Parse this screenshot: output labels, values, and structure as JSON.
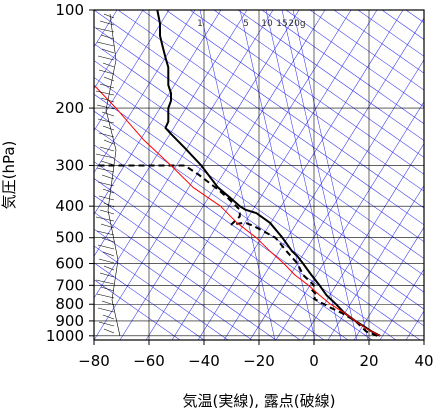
{
  "chart_data": {
    "type": "line",
    "xlabel": "気温(実線), 露点(破線)",
    "ylabel": "気圧(hPa)",
    "xlim": [
      -80,
      40
    ],
    "ylim": [
      1030,
      100
    ],
    "y_scale": "log",
    "x_ticks": [
      -80,
      -60,
      -40,
      -20,
      0,
      20,
      40
    ],
    "y_ticks": [
      100,
      200,
      300,
      400,
      500,
      600,
      700,
      800,
      900,
      1000
    ],
    "mixing_ratio_labels": [
      "1",
      "5",
      "10",
      "15",
      "20g"
    ],
    "colors": {
      "temperature": "#000000",
      "dew_point": "#000000",
      "parcel": "#ff0000",
      "adiabats": "#3333ee",
      "grid": "#000000"
    },
    "series": [
      {
        "key": "temperature",
        "style": "solid",
        "points": [
          [
            24,
            1000
          ],
          [
            21,
            970
          ],
          [
            15,
            900
          ],
          [
            11,
            850
          ],
          [
            8,
            800
          ],
          [
            4.5,
            750
          ],
          [
            2,
            700
          ],
          [
            -1,
            650
          ],
          [
            -4,
            600
          ],
          [
            -6,
            570
          ],
          [
            -8,
            550
          ],
          [
            -11.5,
            500
          ],
          [
            -16,
            450
          ],
          [
            -21,
            420
          ],
          [
            -25,
            410
          ],
          [
            -27,
            400
          ],
          [
            -30,
            380
          ],
          [
            -35,
            350
          ],
          [
            -41,
            300
          ],
          [
            -47,
            265
          ],
          [
            -52,
            240
          ],
          [
            -54,
            230
          ],
          [
            -53,
            220
          ],
          [
            -53,
            200
          ],
          [
            -52,
            190
          ],
          [
            -52,
            180
          ],
          [
            -53,
            170
          ],
          [
            -53,
            160
          ],
          [
            -53,
            150
          ],
          [
            -54,
            140
          ],
          [
            -55,
            130
          ],
          [
            -56,
            120
          ],
          [
            -56,
            110
          ],
          [
            -57,
            100
          ]
        ]
      },
      {
        "key": "dew_point",
        "style": "dashed",
        "points": [
          [
            23,
            1000
          ],
          [
            19,
            970
          ],
          [
            15,
            900
          ],
          [
            10,
            850
          ],
          [
            6,
            820
          ],
          [
            0,
            770
          ],
          [
            1,
            750
          ],
          [
            -1,
            720
          ],
          [
            0,
            700
          ],
          [
            -4,
            650
          ],
          [
            -6,
            600
          ],
          [
            -10,
            550
          ],
          [
            -14,
            500
          ],
          [
            -22,
            460
          ],
          [
            -25,
            450
          ],
          [
            -30,
            455
          ],
          [
            -27,
            430
          ],
          [
            -27,
            410
          ],
          [
            -31,
            380
          ],
          [
            -35,
            355
          ],
          [
            -42,
            320
          ],
          [
            -47,
            300
          ],
          [
            -65,
            300
          ],
          [
            -80,
            300
          ]
        ]
      },
      {
        "key": "parcel",
        "style": "solid",
        "points": [
          [
            24,
            1000
          ],
          [
            19,
            950
          ],
          [
            15,
            900
          ],
          [
            11,
            850
          ],
          [
            6,
            800
          ],
          [
            2,
            750
          ],
          [
            -2,
            700
          ],
          [
            -7,
            650
          ],
          [
            -11,
            600
          ],
          [
            -16,
            550
          ],
          [
            -21,
            500
          ],
          [
            -28,
            450
          ],
          [
            -34,
            400
          ],
          [
            -44,
            350
          ],
          [
            -52,
            300
          ],
          [
            -62,
            250
          ],
          [
            -72,
            200
          ],
          [
            -80,
            170
          ]
        ]
      }
    ]
  }
}
